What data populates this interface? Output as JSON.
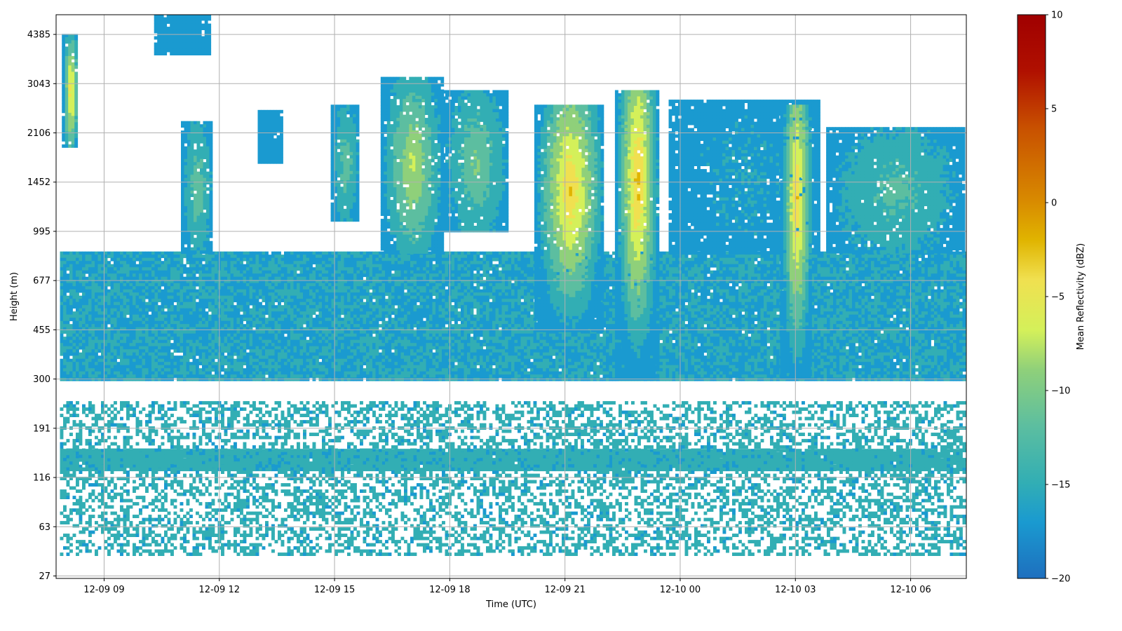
{
  "chart_data": {
    "type": "heatmap",
    "xlabel": "Time (UTC)",
    "ylabel": "Height (m)",
    "colorbar_label": "Mean Reflectivity (dBZ)",
    "x_ticks": [
      "12-09 09",
      "12-09 12",
      "12-09 15",
      "12-09 18",
      "12-09 21",
      "12-10 00",
      "12-10 03",
      "12-10 06"
    ],
    "x_tick_hours": [
      9,
      12,
      15,
      18,
      21,
      24,
      27,
      30
    ],
    "xlim_hours": [
      7.75,
      31.45
    ],
    "y_ticks": [
      "27",
      "63",
      "116",
      "191",
      "300",
      "455",
      "677",
      "995",
      "1452",
      "2106",
      "3043",
      "4385"
    ],
    "y_tick_index": [
      0,
      1,
      2,
      3,
      4,
      5,
      6,
      7,
      8,
      9,
      10,
      11
    ],
    "ylim_index": [
      -0.05,
      11.4
    ],
    "colorbar_ticks": [
      10,
      5,
      0,
      -5,
      -10,
      -15,
      -20
    ],
    "clim": [
      -20,
      10
    ],
    "colormap": [
      "#1e6fbe",
      "#1a9ad0",
      "#32aeb4",
      "#5cbea0",
      "#8fd07a",
      "#d4f05a",
      "#f0e050",
      "#e0b400",
      "#d88a00",
      "#c85000",
      "#b01000",
      "#a00000"
    ],
    "grid": true,
    "layers": [
      {
        "name": "boundary-layer",
        "t0": 7.85,
        "t1": 31.35,
        "z0": 300,
        "z1": 850,
        "base_dbz": -16,
        "gap_at_bottom_m": 260
      },
      {
        "name": "low-band",
        "t0": 7.85,
        "t1": 31.35,
        "z0": 125,
        "z1": 155,
        "base_dbz": -15
      },
      {
        "name": "scattered-low",
        "t0": 7.85,
        "t1": 31.35,
        "z0": 40,
        "z1": 245,
        "base_dbz": -15,
        "sparse": true
      }
    ],
    "cells": [
      {
        "t0": 7.9,
        "t1": 8.3,
        "z0": 1900,
        "z1": 4400,
        "peak_dbz": -2,
        "peak_z": 2900
      },
      {
        "t0": 10.3,
        "t1": 11.7,
        "z0": 3800,
        "z1": 5100,
        "peak_dbz": -17
      },
      {
        "t0": 11.0,
        "t1": 11.8,
        "z0": 850,
        "z1": 2300,
        "peak_dbz": -11
      },
      {
        "t0": 13.0,
        "t1": 13.6,
        "z0": 1700,
        "z1": 2500,
        "peak_dbz": -17
      },
      {
        "t0": 14.9,
        "t1": 15.6,
        "z0": 1100,
        "z1": 2600,
        "peak_dbz": -11
      },
      {
        "t0": 16.2,
        "t1": 17.8,
        "z0": 850,
        "z1": 3200,
        "peak_dbz": -7
      },
      {
        "t0": 17.8,
        "t1": 19.5,
        "z0": 1000,
        "z1": 2900,
        "peak_dbz": -10
      },
      {
        "t0": 20.2,
        "t1": 22.0,
        "z0": 450,
        "z1": 2600,
        "peak_dbz": -2,
        "peak_z": 1400
      },
      {
        "t0": 22.3,
        "t1": 23.4,
        "z0": 300,
        "z1": 2900,
        "peak_dbz": -1,
        "peak_z": 1500
      },
      {
        "t0": 23.7,
        "t1": 27.6,
        "z0": 850,
        "z1": 2700,
        "peak_dbz": -16
      },
      {
        "t0": 26.6,
        "t1": 27.4,
        "z0": 300,
        "z1": 2600,
        "peak_dbz": -2,
        "peak_z": 1300
      },
      {
        "t0": 27.8,
        "t1": 31.35,
        "z0": 850,
        "z1": 2200,
        "peak_dbz": -12
      }
    ]
  }
}
